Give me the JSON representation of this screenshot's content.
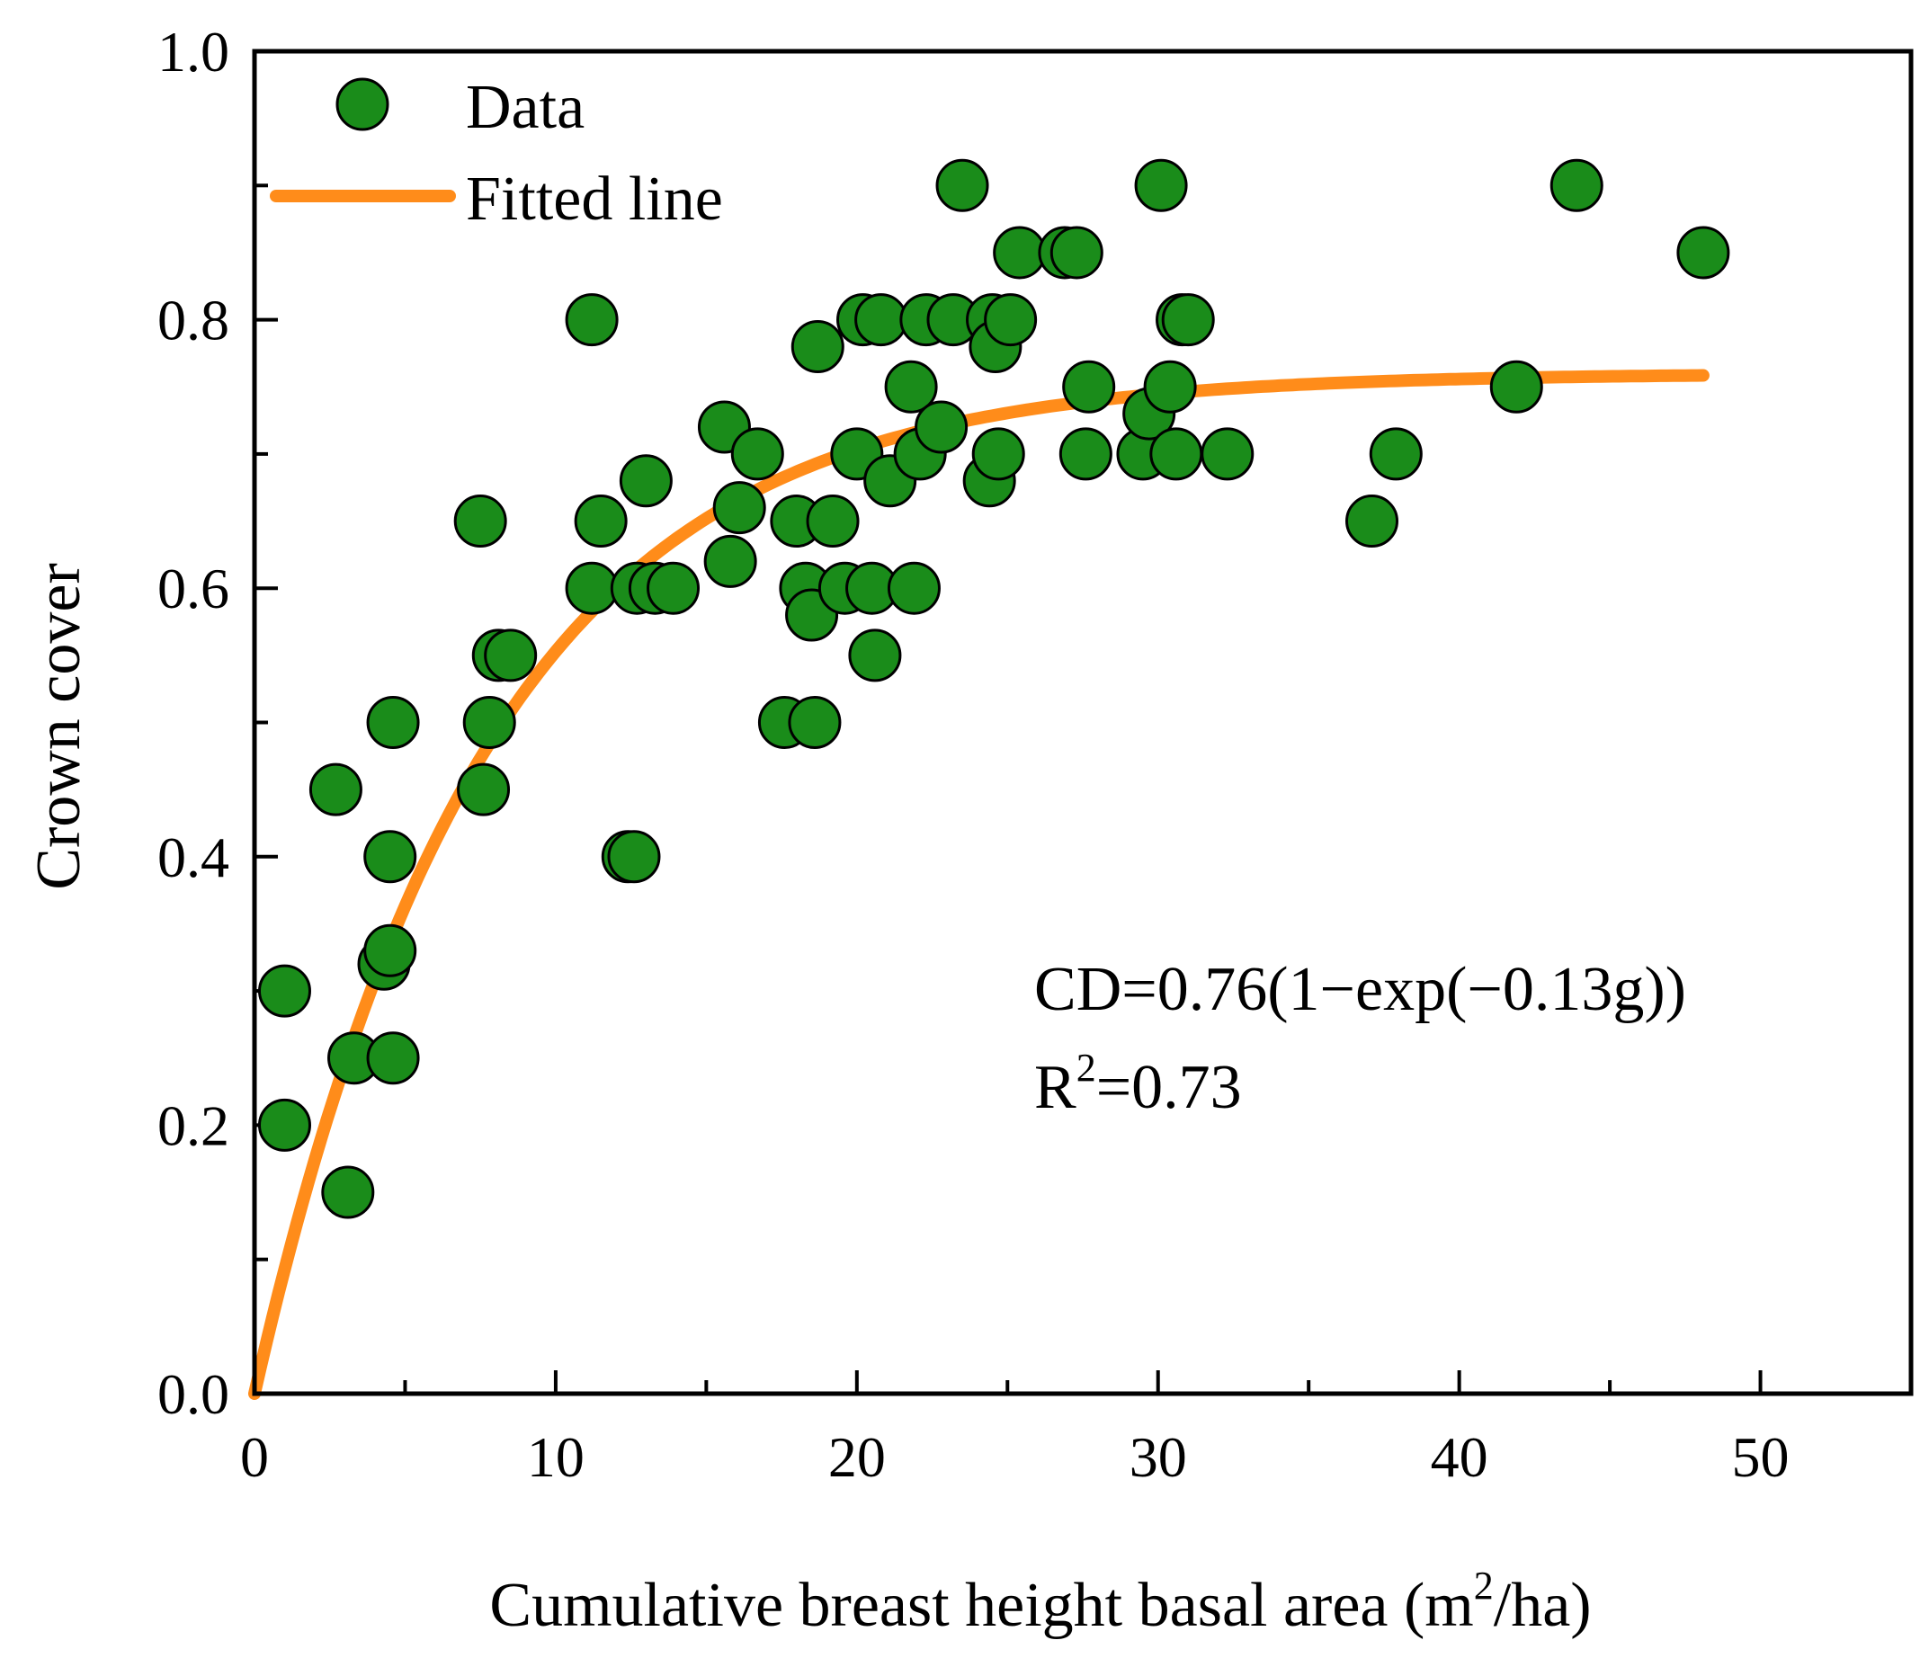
{
  "chart_data": {
    "type": "scatter",
    "xlabel_prefix": "Cumulative breast height basal area (m",
    "xlabel_sup": "2",
    "xlabel_suffix": "/ha)",
    "ylabel": "Crown cover",
    "xlim": [
      0,
      55
    ],
    "ylim": [
      0,
      1.0
    ],
    "xticks": [
      0,
      10,
      20,
      30,
      40,
      50
    ],
    "xtick_labels": [
      "0",
      "10",
      "20",
      "30",
      "40",
      "50"
    ],
    "yticks": [
      0,
      0.2,
      0.4,
      0.6,
      0.8,
      1.0
    ],
    "ytick_labels": [
      "0.0",
      "0.2",
      "0.4",
      "0.6",
      "0.8",
      "1.0"
    ],
    "grid": false,
    "legend_position": "top-left",
    "legend": [
      {
        "label": "Data",
        "kind": "marker",
        "color": "#1a8c1a"
      },
      {
        "label": "Fitted line",
        "kind": "line",
        "color": "#ff8c1a"
      }
    ],
    "series": [
      {
        "name": "Data",
        "kind": "scatter",
        "color": "#1a8c1a",
        "edge_color": "#000000",
        "points": [
          [
            1.0,
            0.3
          ],
          [
            1.0,
            0.2
          ],
          [
            2.7,
            0.45
          ],
          [
            3.1,
            0.15
          ],
          [
            3.3,
            0.25
          ],
          [
            4.3,
            0.32
          ],
          [
            4.5,
            0.33
          ],
          [
            4.6,
            0.25
          ],
          [
            4.5,
            0.4
          ],
          [
            4.6,
            0.5
          ],
          [
            7.5,
            0.65
          ],
          [
            7.6,
            0.45
          ],
          [
            7.8,
            0.5
          ],
          [
            8.1,
            0.55
          ],
          [
            8.5,
            0.55
          ],
          [
            11.2,
            0.8
          ],
          [
            11.2,
            0.6
          ],
          [
            11.5,
            0.65
          ],
          [
            12.4,
            0.4
          ],
          [
            12.6,
            0.4
          ],
          [
            12.7,
            0.6
          ],
          [
            13.0,
            0.68
          ],
          [
            13.3,
            0.6
          ],
          [
            13.9,
            0.6
          ],
          [
            15.6,
            0.72
          ],
          [
            15.8,
            0.62
          ],
          [
            16.1,
            0.66
          ],
          [
            16.7,
            0.7
          ],
          [
            17.6,
            0.5
          ],
          [
            18.0,
            0.65
          ],
          [
            18.3,
            0.6
          ],
          [
            18.5,
            0.58
          ],
          [
            18.7,
            0.78
          ],
          [
            18.6,
            0.5
          ],
          [
            19.2,
            0.65
          ],
          [
            19.6,
            0.6
          ],
          [
            20.0,
            0.7
          ],
          [
            20.2,
            0.8
          ],
          [
            20.5,
            0.6
          ],
          [
            20.6,
            0.55
          ],
          [
            20.8,
            0.8
          ],
          [
            21.1,
            0.68
          ],
          [
            21.8,
            0.75
          ],
          [
            21.9,
            0.6
          ],
          [
            22.1,
            0.7
          ],
          [
            22.3,
            0.8
          ],
          [
            22.8,
            0.72
          ],
          [
            23.2,
            0.8
          ],
          [
            23.5,
            0.9
          ],
          [
            24.4,
            0.68
          ],
          [
            24.5,
            0.8
          ],
          [
            24.6,
            0.78
          ],
          [
            24.7,
            0.7
          ],
          [
            25.1,
            0.8
          ],
          [
            25.4,
            0.85
          ],
          [
            26.9,
            0.85
          ],
          [
            27.3,
            0.85
          ],
          [
            27.6,
            0.7
          ],
          [
            27.7,
            0.75
          ],
          [
            29.5,
            0.7
          ],
          [
            29.7,
            0.73
          ],
          [
            30.1,
            0.9
          ],
          [
            30.4,
            0.75
          ],
          [
            30.6,
            0.7
          ],
          [
            30.8,
            0.8
          ],
          [
            31.0,
            0.8
          ],
          [
            32.3,
            0.7
          ],
          [
            37.1,
            0.65
          ],
          [
            37.9,
            0.7
          ],
          [
            41.9,
            0.75
          ],
          [
            43.9,
            0.9
          ],
          [
            48.1,
            0.85
          ]
        ]
      },
      {
        "name": "Fitted line",
        "kind": "line",
        "color": "#ff8c1a",
        "model": {
          "a": 0.76,
          "b": 0.13,
          "x_min": 0,
          "x_max": 48.1
        }
      }
    ],
    "annotations": {
      "equation": "CD=0.76(1−exp(−0.13g))",
      "r2_prefix": "R",
      "r2_sup": "2",
      "r2_suffix": "=0.73"
    }
  }
}
